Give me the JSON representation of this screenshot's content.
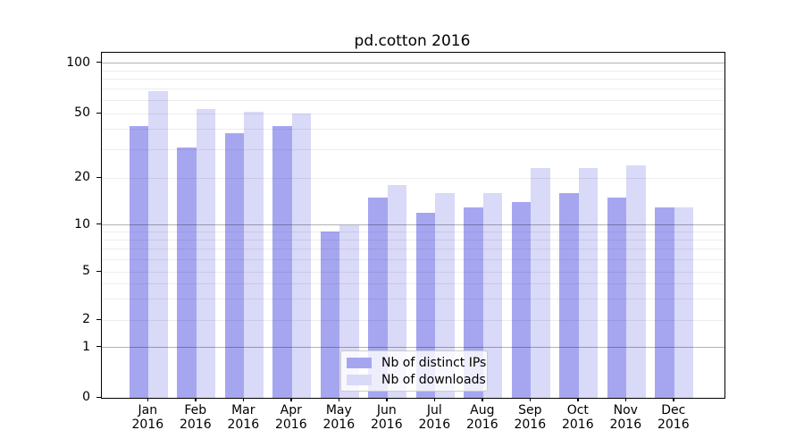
{
  "chart_data": {
    "type": "bar",
    "title": "pd.cotton 2016",
    "categories": [
      "Jan",
      "Feb",
      "Mar",
      "Apr",
      "May",
      "Jun",
      "Jul",
      "Aug",
      "Sep",
      "Oct",
      "Nov",
      "Dec"
    ],
    "category_year": "2016",
    "series": [
      {
        "name": "Nb of distinct IPs",
        "color": "#a6a6f0",
        "values": [
          42,
          31,
          38,
          42,
          9,
          15,
          12,
          13,
          14,
          16,
          15,
          13
        ]
      },
      {
        "name": "Nb of downloads",
        "color": "#d9d9f8",
        "values": [
          68,
          53,
          51,
          50,
          10,
          18,
          16,
          16,
          23,
          23,
          24,
          13
        ]
      }
    ],
    "xlabel": "",
    "ylabel": "",
    "yscale": "symlog",
    "y_tick_labels": [
      "100",
      "50",
      "20",
      "10",
      "5",
      "2",
      "1",
      "0"
    ],
    "y_tick_values": [
      100,
      50,
      20,
      10,
      5,
      2,
      1,
      0
    ],
    "ylim": [
      0,
      115
    ],
    "grid": "horizontal-major-and-minor",
    "legend_position": "lower-center"
  }
}
